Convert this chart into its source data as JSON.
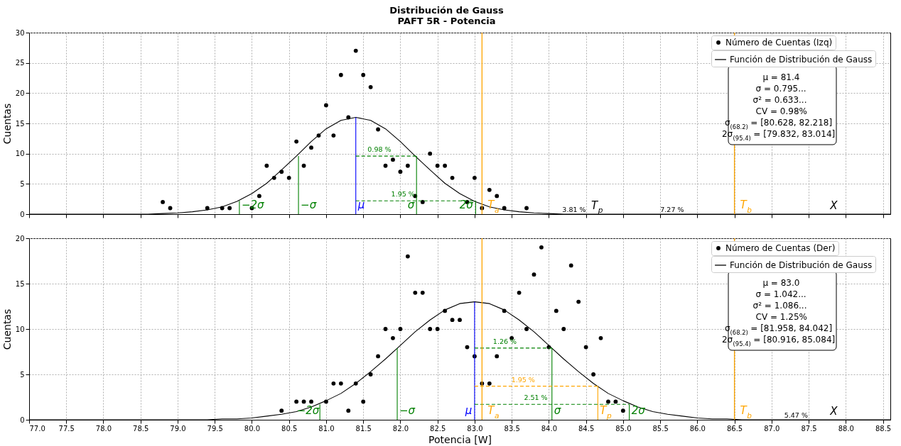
{
  "chart_data": [
    {
      "type": "scatter",
      "title": "Distribución de Gauss",
      "subtitle": "PAFT 5R - Potencia",
      "ylabel": "Cuentas",
      "xlim": [
        77.0,
        88.6
      ],
      "ylim": [
        0,
        30
      ],
      "xticks": [
        77.0,
        77.5,
        78.0,
        78.5,
        79.0,
        79.5,
        80.0,
        80.5,
        81.0,
        81.5,
        82.0,
        82.5,
        83.0,
        83.5,
        84.0,
        84.5,
        85.0,
        85.5,
        86.0,
        86.5,
        87.0,
        87.5,
        88.0,
        88.5
      ],
      "yticks": [
        0,
        5,
        10,
        15,
        20,
        25,
        30
      ],
      "tick_labels": "y",
      "grid": true,
      "legend": "top right",
      "series": [
        {
          "name": "Número de Cuentas (Izq)",
          "color": "#000000",
          "x": [
            78.8,
            78.9,
            79.4,
            79.6,
            79.7,
            80.0,
            80.1,
            80.2,
            80.3,
            80.4,
            80.5,
            80.6,
            80.7,
            80.8,
            80.9,
            81.0,
            81.1,
            81.2,
            81.3,
            81.4,
            81.5,
            81.6,
            81.7,
            81.8,
            81.9,
            82.0,
            82.1,
            82.2,
            82.3,
            82.4,
            82.5,
            82.6,
            82.7,
            82.9,
            83.0,
            83.1,
            83.2,
            83.3,
            83.4,
            83.7
          ],
          "values": [
            2,
            1,
            1,
            1,
            1,
            1,
            3,
            8,
            6,
            7,
            6,
            12,
            8,
            11,
            13,
            18,
            13,
            23,
            16,
            27,
            23,
            21,
            14,
            8,
            9,
            7,
            8,
            3,
            2,
            10,
            8,
            8,
            6,
            2,
            6,
            1,
            4,
            3,
            1,
            1
          ]
        },
        {
          "type": "line",
          "name": "Función de Distribución de Gauss",
          "color": "#000000",
          "x": [
            77.0,
            78.2,
            78.6,
            78.8,
            79.0,
            79.2,
            79.4,
            79.6,
            79.8,
            80.0,
            80.2,
            80.4,
            80.6,
            80.8,
            81.0,
            81.2,
            81.4,
            81.6,
            81.8,
            82.0,
            82.2,
            82.4,
            82.6,
            82.8,
            83.0,
            83.2,
            83.4,
            83.6,
            83.8,
            84.0,
            84.2,
            84.6,
            88.6
          ],
          "values": [
            0,
            0,
            0,
            0.1,
            0.2,
            0.4,
            0.7,
            1.2,
            2.1,
            3.4,
            5.1,
            7.3,
            9.6,
            12.0,
            14.1,
            15.5,
            16,
            15.5,
            14.1,
            12.0,
            9.6,
            7.3,
            5.1,
            3.4,
            2.1,
            1.2,
            0.7,
            0.4,
            0.2,
            0.1,
            0,
            0,
            0
          ]
        },
        {
          "type": "line",
          "name": "μ",
          "color": "#0000ff",
          "x": [
            81.4,
            81.4
          ],
          "values": [
            0,
            16
          ]
        },
        {
          "type": "line",
          "name": "−σ",
          "color": "#008000",
          "x": [
            80.628,
            80.628
          ],
          "values": [
            0,
            9.6
          ]
        },
        {
          "type": "line",
          "name": "σ",
          "color": "#008000",
          "x": [
            82.218,
            82.218
          ],
          "values": [
            0,
            9.6
          ]
        },
        {
          "type": "line",
          "name": "−2σ",
          "color": "#008000",
          "x": [
            79.832,
            79.832
          ],
          "values": [
            0,
            2.2
          ]
        },
        {
          "type": "line",
          "name": "2σ",
          "color": "#008000",
          "x": [
            83.014,
            83.014
          ],
          "values": [
            0,
            2.2
          ]
        },
        {
          "type": "line",
          "name": "0.98 %",
          "color": "#008000",
          "line_style": "dashed",
          "x": [
            81.4,
            82.218
          ],
          "values": [
            9.6,
            9.6
          ]
        },
        {
          "type": "line",
          "name": "1.95 %",
          "color": "#008000",
          "line_style": "dashed",
          "x": [
            81.4,
            83.014
          ],
          "values": [
            2.2,
            2.2
          ]
        }
      ],
      "ref_lines": [
        {
          "axis": "x",
          "value": 83.1,
          "label": "T$_{a}$",
          "color": "#ffa500"
        },
        {
          "axis": "x",
          "value": 86.5,
          "label": "T$_{b}$",
          "color": "#ffa500"
        }
      ],
      "annotations": [
        "μ = 81.4",
        "σ = 0.795...",
        "σ² = 0.633...",
        "CV = 0.98%",
        "σ$_{(68.2)}$ = [80.628, 82.218]",
        "2σ$_{(95.4)}$ = [79.832, 83.014]",
        {
          "text": "T$_{p}$",
          "x": 84.66,
          "y": 0.5
        },
        {
          "text": "3.81 %",
          "x": 84.35,
          "y": 0.1
        },
        {
          "text": "7.27 %",
          "x": 85.67,
          "y": 0.1
        },
        {
          "text": "X",
          "x": 87.84,
          "y": 0.5
        }
      ]
    },
    {
      "type": "scatter",
      "xlabel": "Potencia [W]",
      "ylabel": "Cuentas",
      "xlim": [
        77.0,
        88.6
      ],
      "ylim": [
        0,
        20
      ],
      "xticks": [
        {
          "value": 77.0,
          "label": "77.0"
        },
        {
          "value": 77.5,
          "label": "77.5"
        },
        {
          "value": 78.0,
          "label": "78.0"
        },
        {
          "value": 78.5,
          "label": "78.5"
        },
        {
          "value": 79.0,
          "label": "79.0"
        },
        {
          "value": 79.5,
          "label": "79.5"
        },
        {
          "value": 80.0,
          "label": "80.0"
        },
        {
          "value": 80.5,
          "label": "80.5"
        },
        {
          "value": 81.0,
          "label": "81.0"
        },
        {
          "value": 81.5,
          "label": "81.5"
        },
        {
          "value": 82.0,
          "label": "82.0"
        },
        {
          "value": 82.5,
          "label": "82.5"
        },
        {
          "value": 83.0,
          "label": "83.0"
        },
        {
          "value": 83.5,
          "label": "83.5"
        },
        {
          "value": 84.0,
          "label": "84.0"
        },
        {
          "value": 84.5,
          "label": "84.5"
        },
        {
          "value": 85.0,
          "label": "85.0"
        },
        {
          "value": 85.5,
          "label": "85.5"
        },
        {
          "value": 86.0,
          "label": "86.0"
        },
        {
          "value": 86.5,
          "label": "86.5"
        },
        {
          "value": 87.0,
          "label": "87.0"
        },
        {
          "value": 87.5,
          "label": "87.5"
        },
        {
          "value": 88.0,
          "label": "88.0"
        },
        {
          "value": 88.5,
          "label": "88.5"
        }
      ],
      "yticks": [
        0,
        5,
        10,
        15,
        20
      ],
      "grid": true,
      "legend": "top right",
      "series": [
        {
          "name": "Número de Cuentas (Der)",
          "color": "#000000",
          "x": [
            80.4,
            80.6,
            80.7,
            80.8,
            81.0,
            81.1,
            81.2,
            81.3,
            81.4,
            81.5,
            81.6,
            81.7,
            81.8,
            81.9,
            82.0,
            82.1,
            82.2,
            82.3,
            82.4,
            82.5,
            82.6,
            82.7,
            82.8,
            82.9,
            83.0,
            83.1,
            83.2,
            83.3,
            83.4,
            83.5,
            83.6,
            83.7,
            83.8,
            83.9,
            84.0,
            84.1,
            84.2,
            84.3,
            84.4,
            84.5,
            84.6,
            84.7,
            84.8,
            84.9,
            85.0
          ],
          "values": [
            1,
            2,
            2,
            2,
            2,
            4,
            4,
            1,
            4,
            2,
            5,
            7,
            10,
            9,
            10,
            18,
            14,
            14,
            10,
            10,
            12,
            11,
            11,
            8,
            7,
            4,
            4,
            7,
            12,
            9,
            14,
            10,
            16,
            19,
            8,
            12,
            10,
            17,
            13,
            8,
            5,
            9,
            2,
            2,
            1
          ]
        },
        {
          "type": "line",
          "name": "Función de Distribución de Gauss",
          "color": "#000000",
          "x": [
            77.0,
            78.8,
            79.4,
            79.6,
            79.8,
            80.0,
            80.2,
            80.4,
            80.6,
            80.8,
            81.0,
            81.2,
            81.4,
            81.6,
            81.8,
            82.0,
            82.2,
            82.4,
            82.6,
            82.8,
            83.0,
            83.2,
            83.4,
            83.6,
            83.8,
            84.0,
            84.2,
            84.4,
            84.6,
            84.8,
            85.0,
            85.2,
            85.4,
            85.6,
            85.8,
            86.0,
            86.2,
            86.4,
            86.6,
            87.2,
            88.6
          ],
          "values": [
            0,
            0,
            0,
            0.1,
            0.1,
            0.2,
            0.4,
            0.6,
            0.9,
            1.4,
            2.1,
            2.9,
            4.0,
            5.3,
            6.7,
            8.2,
            9.7,
            11.0,
            12.1,
            12.8,
            13,
            12.8,
            12.1,
            11.0,
            9.7,
            8.2,
            6.7,
            5.3,
            4.0,
            2.9,
            2.1,
            1.4,
            0.9,
            0.6,
            0.4,
            0.2,
            0.1,
            0.1,
            0,
            0,
            0
          ]
        },
        {
          "type": "line",
          "name": "μ",
          "color": "#0000ff",
          "x": [
            83.0,
            83.0
          ],
          "values": [
            0,
            13
          ]
        },
        {
          "type": "line",
          "name": "−σ",
          "color": "#008000",
          "x": [
            81.958,
            81.958
          ],
          "values": [
            0,
            7.9
          ]
        },
        {
          "type": "line",
          "name": "σ",
          "color": "#008000",
          "x": [
            84.042,
            84.042
          ],
          "values": [
            0,
            7.9
          ]
        },
        {
          "type": "line",
          "name": "−2σ",
          "color": "#008000",
          "x": [
            80.916,
            80.916
          ],
          "values": [
            0,
            1.7
          ]
        },
        {
          "type": "line",
          "name": "2σ",
          "color": "#008000",
          "x": [
            85.084,
            85.084
          ],
          "values": [
            0,
            1.7
          ]
        },
        {
          "type": "line",
          "name": "T$_{p}$",
          "color": "#ffa500",
          "x": [
            84.66,
            84.66
          ],
          "values": [
            0,
            3.7
          ]
        },
        {
          "type": "line",
          "name": "1.26 %",
          "color": "#008000",
          "line_style": "dashed",
          "x": [
            83.0,
            84.042
          ],
          "values": [
            7.9,
            7.9
          ]
        },
        {
          "type": "line",
          "name": "1.95 %",
          "color": "#ffa500",
          "line_style": "dashed",
          "x": [
            83.0,
            84.66
          ],
          "values": [
            3.7,
            3.7
          ]
        },
        {
          "type": "line",
          "name": "2.51 %",
          "color": "#008000",
          "line_style": "dashed",
          "x": [
            83.0,
            85.084
          ],
          "values": [
            1.7,
            1.7
          ]
        }
      ],
      "ref_lines": [
        {
          "axis": "x",
          "value": 83.1,
          "label": "T$_{a}$",
          "color": "#ffa500"
        },
        {
          "axis": "x",
          "value": 86.5,
          "label": "T$_{b}$",
          "color": "#ffa500"
        }
      ],
      "annotations": [
        "μ = 83.0",
        "σ = 1.042...",
        "σ² = 1.086...",
        "CV = 1.25%",
        "σ$_{(68.2)}$ = [81.958, 84.042]",
        "2σ$_{(95.4)}$ = [80.916, 85.084]",
        {
          "text": "5.47 %",
          "x": 87.34,
          "y": 0.1
        },
        {
          "text": "X",
          "x": 87.84,
          "y": 0.3
        }
      ]
    }
  ]
}
